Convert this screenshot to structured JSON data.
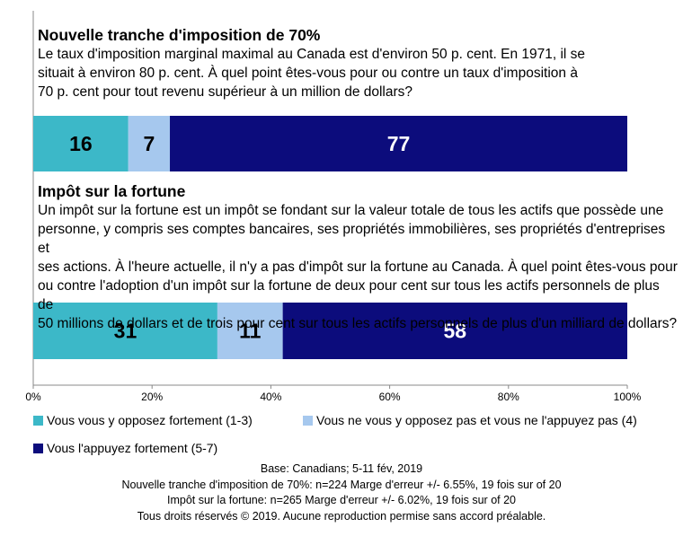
{
  "questions": [
    {
      "title": "Nouvelle tranche d'imposition de 70%",
      "lines": [
        "Le taux d'imposition marginal maximal au Canada est d'environ 50 p. cent. En 1971, il se",
        "situait à environ 80 p. cent. À quel point êtes-vous pour ou contre un taux d'imposition à",
        "70 p. cent pour tout revenu supérieur à un million de dollars?"
      ]
    },
    {
      "title": "Impôt sur la fortune",
      "lines": [
        "Un impôt sur la fortune est un impôt se fondant sur la valeur totale de tous les actifs que possède une",
        "personne, y compris ses comptes bancaires, ses propriétés immobilières, ses propriétés d'entreprises et",
        "ses actions. À l'heure actuelle, il n'y a pas d'impôt sur la fortune au Canada. À quel point êtes-vous pour",
        "ou contre l'adoption d'un impôt sur la fortune de deux pour cent sur tous les actifs personnels de plus de",
        "50 millions de dollars et de trois pour cent sur tous les actifs personnels de plus d'un milliard de dollars?"
      ]
    }
  ],
  "chart_data": {
    "type": "bar",
    "orientation": "horizontal-stacked-100",
    "categories": [
      "Nouvelle tranche d'imposition de 70%",
      "Impôt sur la fortune"
    ],
    "series": [
      {
        "name": "Vous vous y opposez fortement (1-3)",
        "values": [
          16,
          31
        ],
        "color": "#3cb8c8"
      },
      {
        "name": "Vous ne vous y opposez pas et vous ne l'appuyez pas (4)",
        "values": [
          7,
          11
        ],
        "color": "#a6c8ee"
      },
      {
        "name": "Vous l'appuyez fortement (5-7)",
        "values": [
          77,
          58
        ],
        "color": "#0c0c7c"
      }
    ],
    "x_ticks": [
      "0%",
      "20%",
      "40%",
      "60%",
      "80%",
      "100%"
    ],
    "xlim": [
      0,
      100
    ],
    "legend_position": "bottom",
    "grid": false
  },
  "footer": [
    "Base: Canadians; 5-11 fév, 2019",
    "Nouvelle tranche d'imposition de 70%: n=224  Marge d'erreur +/- 6.55%, 19 fois sur of 20",
    "Impôt sur la fortune: n=265  Marge d'erreur +/- 6.02%, 19 fois sur of 20",
    "Tous droits réservés © 2019. Aucune reproduction permise sans accord préalable."
  ]
}
